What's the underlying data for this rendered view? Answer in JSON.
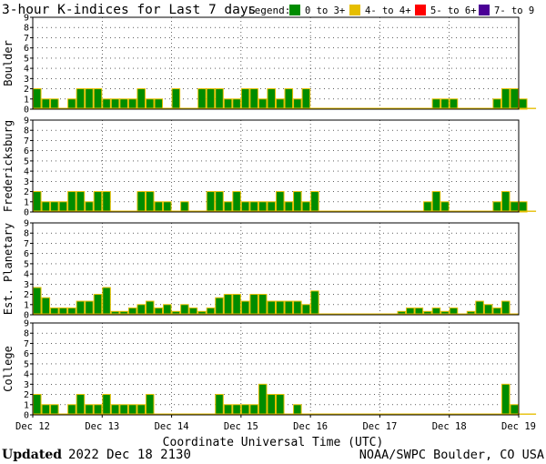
{
  "chart_data": {
    "type": "bar",
    "title": "3-hour K-indices for Last 7 days",
    "legend": {
      "label": "Legend:",
      "items": [
        {
          "label": "0 to 3+",
          "color": "#008c00"
        },
        {
          "label": "4- to 4+",
          "color": "#e6be00"
        },
        {
          "label": "5- to 6+",
          "color": "#ff0000"
        },
        {
          "label": "7- to 9",
          "color": "#4b0096"
        }
      ],
      "position": "top-right"
    },
    "ylim": [
      0,
      9
    ],
    "y_ticks": [
      "0",
      "1",
      "2",
      "3",
      "4",
      "5",
      "6",
      "7",
      "8",
      "9"
    ],
    "grid": true,
    "bar_edge_color": "#e6be00",
    "xlabel": "Coordinate Universal Time (UTC)",
    "x_tick_labels": [
      "Dec 12",
      "Dec 13",
      "Dec 14",
      "Dec 15",
      "Dec 16",
      "Dec 17",
      "Dec 18",
      "Dec 19"
    ],
    "slots_per_day": 8,
    "panels": [
      {
        "name": "Boulder",
        "values": [
          2,
          1,
          1,
          0,
          1,
          2,
          2,
          2,
          1,
          1,
          1,
          1,
          2,
          1,
          1,
          0,
          2,
          0,
          0,
          2,
          2,
          2,
          1,
          1,
          2,
          2,
          1,
          2,
          1,
          2,
          1,
          2,
          0,
          0,
          0,
          0,
          0,
          0,
          0,
          0,
          0,
          0,
          0,
          0,
          0,
          0,
          1,
          1,
          1,
          0,
          0,
          0,
          0,
          1,
          2,
          2,
          1,
          0
        ]
      },
      {
        "name": "Fredericksburg",
        "values": [
          2,
          1,
          1,
          1,
          2,
          2,
          1,
          2,
          2,
          0,
          0,
          0,
          2,
          2,
          1,
          1,
          0,
          1,
          0,
          0,
          2,
          2,
          1,
          2,
          1,
          1,
          1,
          1,
          2,
          1,
          2,
          1,
          2,
          0,
          0,
          0,
          0,
          0,
          0,
          0,
          0,
          0,
          0,
          0,
          0,
          1,
          2,
          1,
          0,
          0,
          0,
          0,
          0,
          1,
          2,
          1,
          1,
          0
        ]
      },
      {
        "name": "Est. Planetary",
        "values": [
          2.67,
          1.67,
          0.67,
          0.67,
          0.67,
          1.33,
          1.33,
          2,
          2.67,
          0.33,
          0.33,
          0.67,
          1,
          1.33,
          0.67,
          1,
          0.33,
          1,
          0.67,
          0.33,
          0.67,
          1.67,
          2,
          2,
          1.33,
          2,
          2,
          1.33,
          1.33,
          1.33,
          1.33,
          1,
          2.33,
          0,
          0,
          0,
          0,
          0,
          0,
          0,
          0,
          0,
          0.33,
          0.67,
          0.67,
          0.33,
          0.67,
          0.33,
          0.67,
          0,
          0.33,
          1.33,
          1,
          0.67,
          1.33,
          0
        ]
      },
      {
        "name": "College",
        "values": [
          2,
          1,
          1,
          0,
          1,
          2,
          1,
          1,
          2,
          1,
          1,
          1,
          1,
          2,
          0,
          0,
          0,
          0,
          0,
          0,
          0,
          2,
          1,
          1,
          1,
          1,
          3,
          2,
          2,
          0,
          1,
          0,
          0,
          0,
          0,
          0,
          0,
          0,
          0,
          0,
          0,
          0,
          0,
          0,
          0,
          0,
          0,
          0,
          0,
          0,
          0,
          0,
          0,
          0,
          3,
          1,
          0,
          0
        ]
      }
    ]
  },
  "footer": {
    "updated_label": "Updated",
    "updated_value": "2022 Dec 18 2130",
    "credit": "NOAA/SWPC Boulder, CO USA"
  }
}
